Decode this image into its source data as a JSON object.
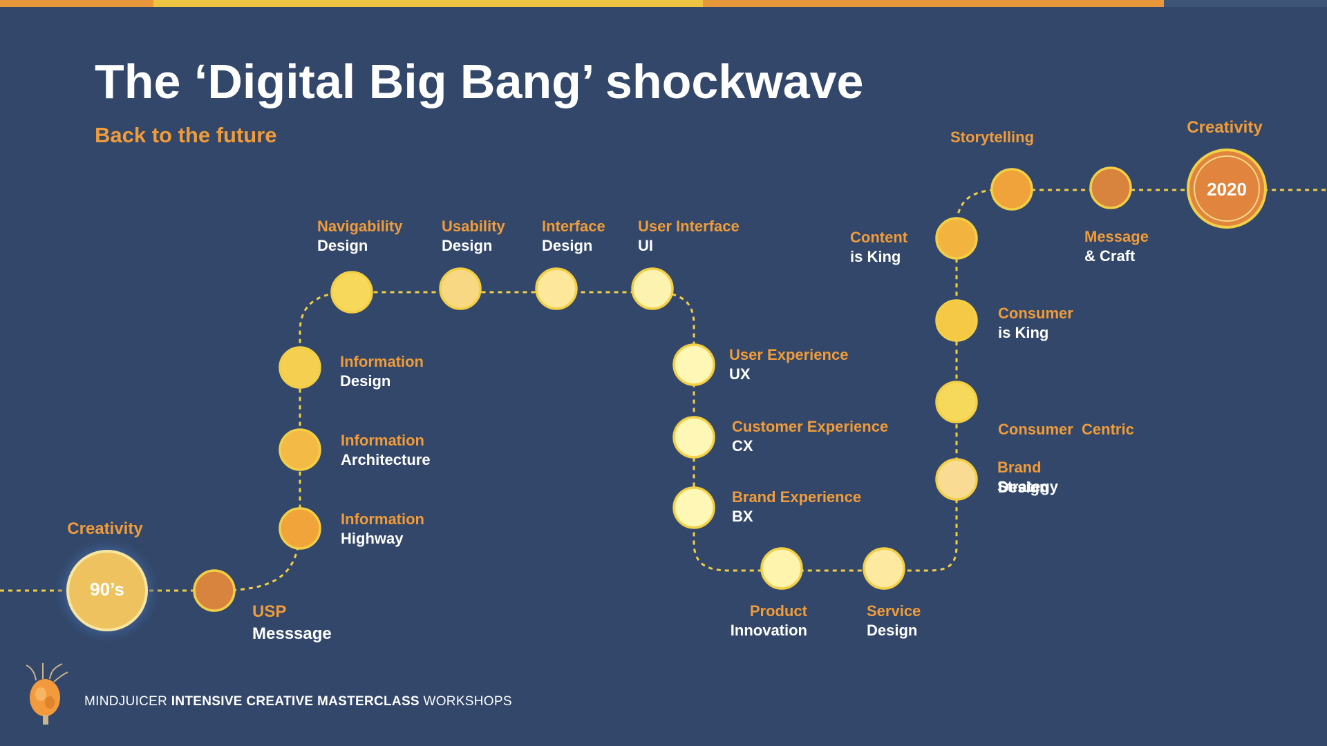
{
  "title": "The ‘Digital Big Bang’ shockwave",
  "subtitle": "Back to the future",
  "colors": {
    "background": "#324769",
    "accent_orange": "#f09c3a",
    "ring_yellow": "#f2cf45",
    "text_white": "#ffffff"
  },
  "start_node": {
    "label": "90’s",
    "caption": "Creativity"
  },
  "end_node": {
    "label": "2020",
    "caption": "Creativity"
  },
  "milestones": [
    {
      "id": "usp",
      "title": "USP",
      "subtitle": "Messsage"
    },
    {
      "id": "info-highway",
      "title": "Information",
      "subtitle": "Highway"
    },
    {
      "id": "info-arch",
      "title": "Information",
      "subtitle": "Architecture"
    },
    {
      "id": "info-design",
      "title": "Information",
      "subtitle": "Design"
    },
    {
      "id": "navigability",
      "title": "Navigability",
      "subtitle": "Design"
    },
    {
      "id": "usability",
      "title": "Usability",
      "subtitle": "Design"
    },
    {
      "id": "interface",
      "title": "Interface",
      "subtitle": "Design"
    },
    {
      "id": "ui",
      "title": "User Interface",
      "subtitle": "UI"
    },
    {
      "id": "ux",
      "title": "User Experience",
      "subtitle": "UX"
    },
    {
      "id": "cx",
      "title": "Customer Experience",
      "subtitle": "CX"
    },
    {
      "id": "bx",
      "title": "Brand Experience",
      "subtitle": "BX"
    },
    {
      "id": "product",
      "title": "Product",
      "subtitle": "Innovation"
    },
    {
      "id": "service",
      "title": "Service",
      "subtitle": "Design"
    },
    {
      "id": "brand-strategy",
      "title": "Brand",
      "subtitle": "Strategy"
    },
    {
      "id": "consumer-centric",
      "title": "Consumer  Centric",
      "subtitle": "Design"
    },
    {
      "id": "consumer-king",
      "title": "Consumer",
      "subtitle": "is King"
    },
    {
      "id": "content-king",
      "title": "Content",
      "subtitle": "is King"
    },
    {
      "id": "storytelling",
      "title": "Storytelling",
      "subtitle": ""
    },
    {
      "id": "message-craft",
      "title": "Message",
      "subtitle": "& Craft"
    }
  ],
  "footer": {
    "brand": "MINDJUICER",
    "strong": "INTENSIVE CREATIVE MASTERCLASS",
    "tail": "WORKSHOPS"
  }
}
